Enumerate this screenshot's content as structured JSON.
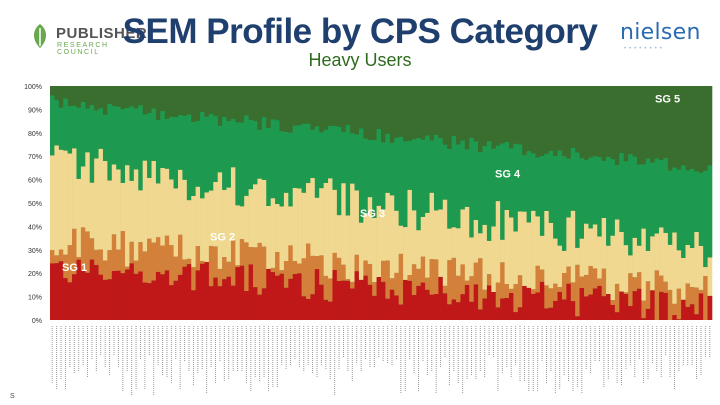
{
  "header": {
    "title": "SEM Profile by CPS Category",
    "subtitle": "Heavy Users",
    "publisher_logo": "PUBLISHER",
    "publisher_logo_sub": "RESEARCH COUNCIL",
    "nielsen_logo": "nielsen"
  },
  "footnote": "S",
  "colors": {
    "sg1": "#c01818",
    "sg2": "#d2803a",
    "sg3": "#f0d890",
    "sg4": "#1e9a50",
    "sg5": "#3a6e2e",
    "title": "#1f3f6e"
  },
  "chart_data": {
    "type": "bar",
    "stacked": true,
    "title": "SEM Profile by CPS Category",
    "subtitle": "Heavy Users",
    "ylim": [
      0,
      100
    ],
    "y_ticks": [
      "0%",
      "10%",
      "20%",
      "30%",
      "40%",
      "50%",
      "60%",
      "70%",
      "80%",
      "90%",
      "100%"
    ],
    "x_labels_note": "about 150 CPS category labels are printed vertically below the axis but are too small to read",
    "bar_count": 150,
    "series_labels": [
      {
        "name": "SG 1",
        "label": "SG 1",
        "y": 21
      },
      {
        "name": "SG 2",
        "label": "SG 2",
        "y": 34
      },
      {
        "name": "SG 3",
        "label": "SG 3",
        "y": 44
      },
      {
        "name": "SG 4",
        "label": "SG 4",
        "y": 61
      },
      {
        "name": "SG 5",
        "label": "SG 5",
        "y": 93
      }
    ],
    "trends": {
      "sg1_top": [
        22,
        5
      ],
      "sg2_top": [
        33,
        12
      ],
      "sg3_top": [
        68,
        30
      ],
      "sg4_top": [
        93,
        65
      ]
    }
  }
}
